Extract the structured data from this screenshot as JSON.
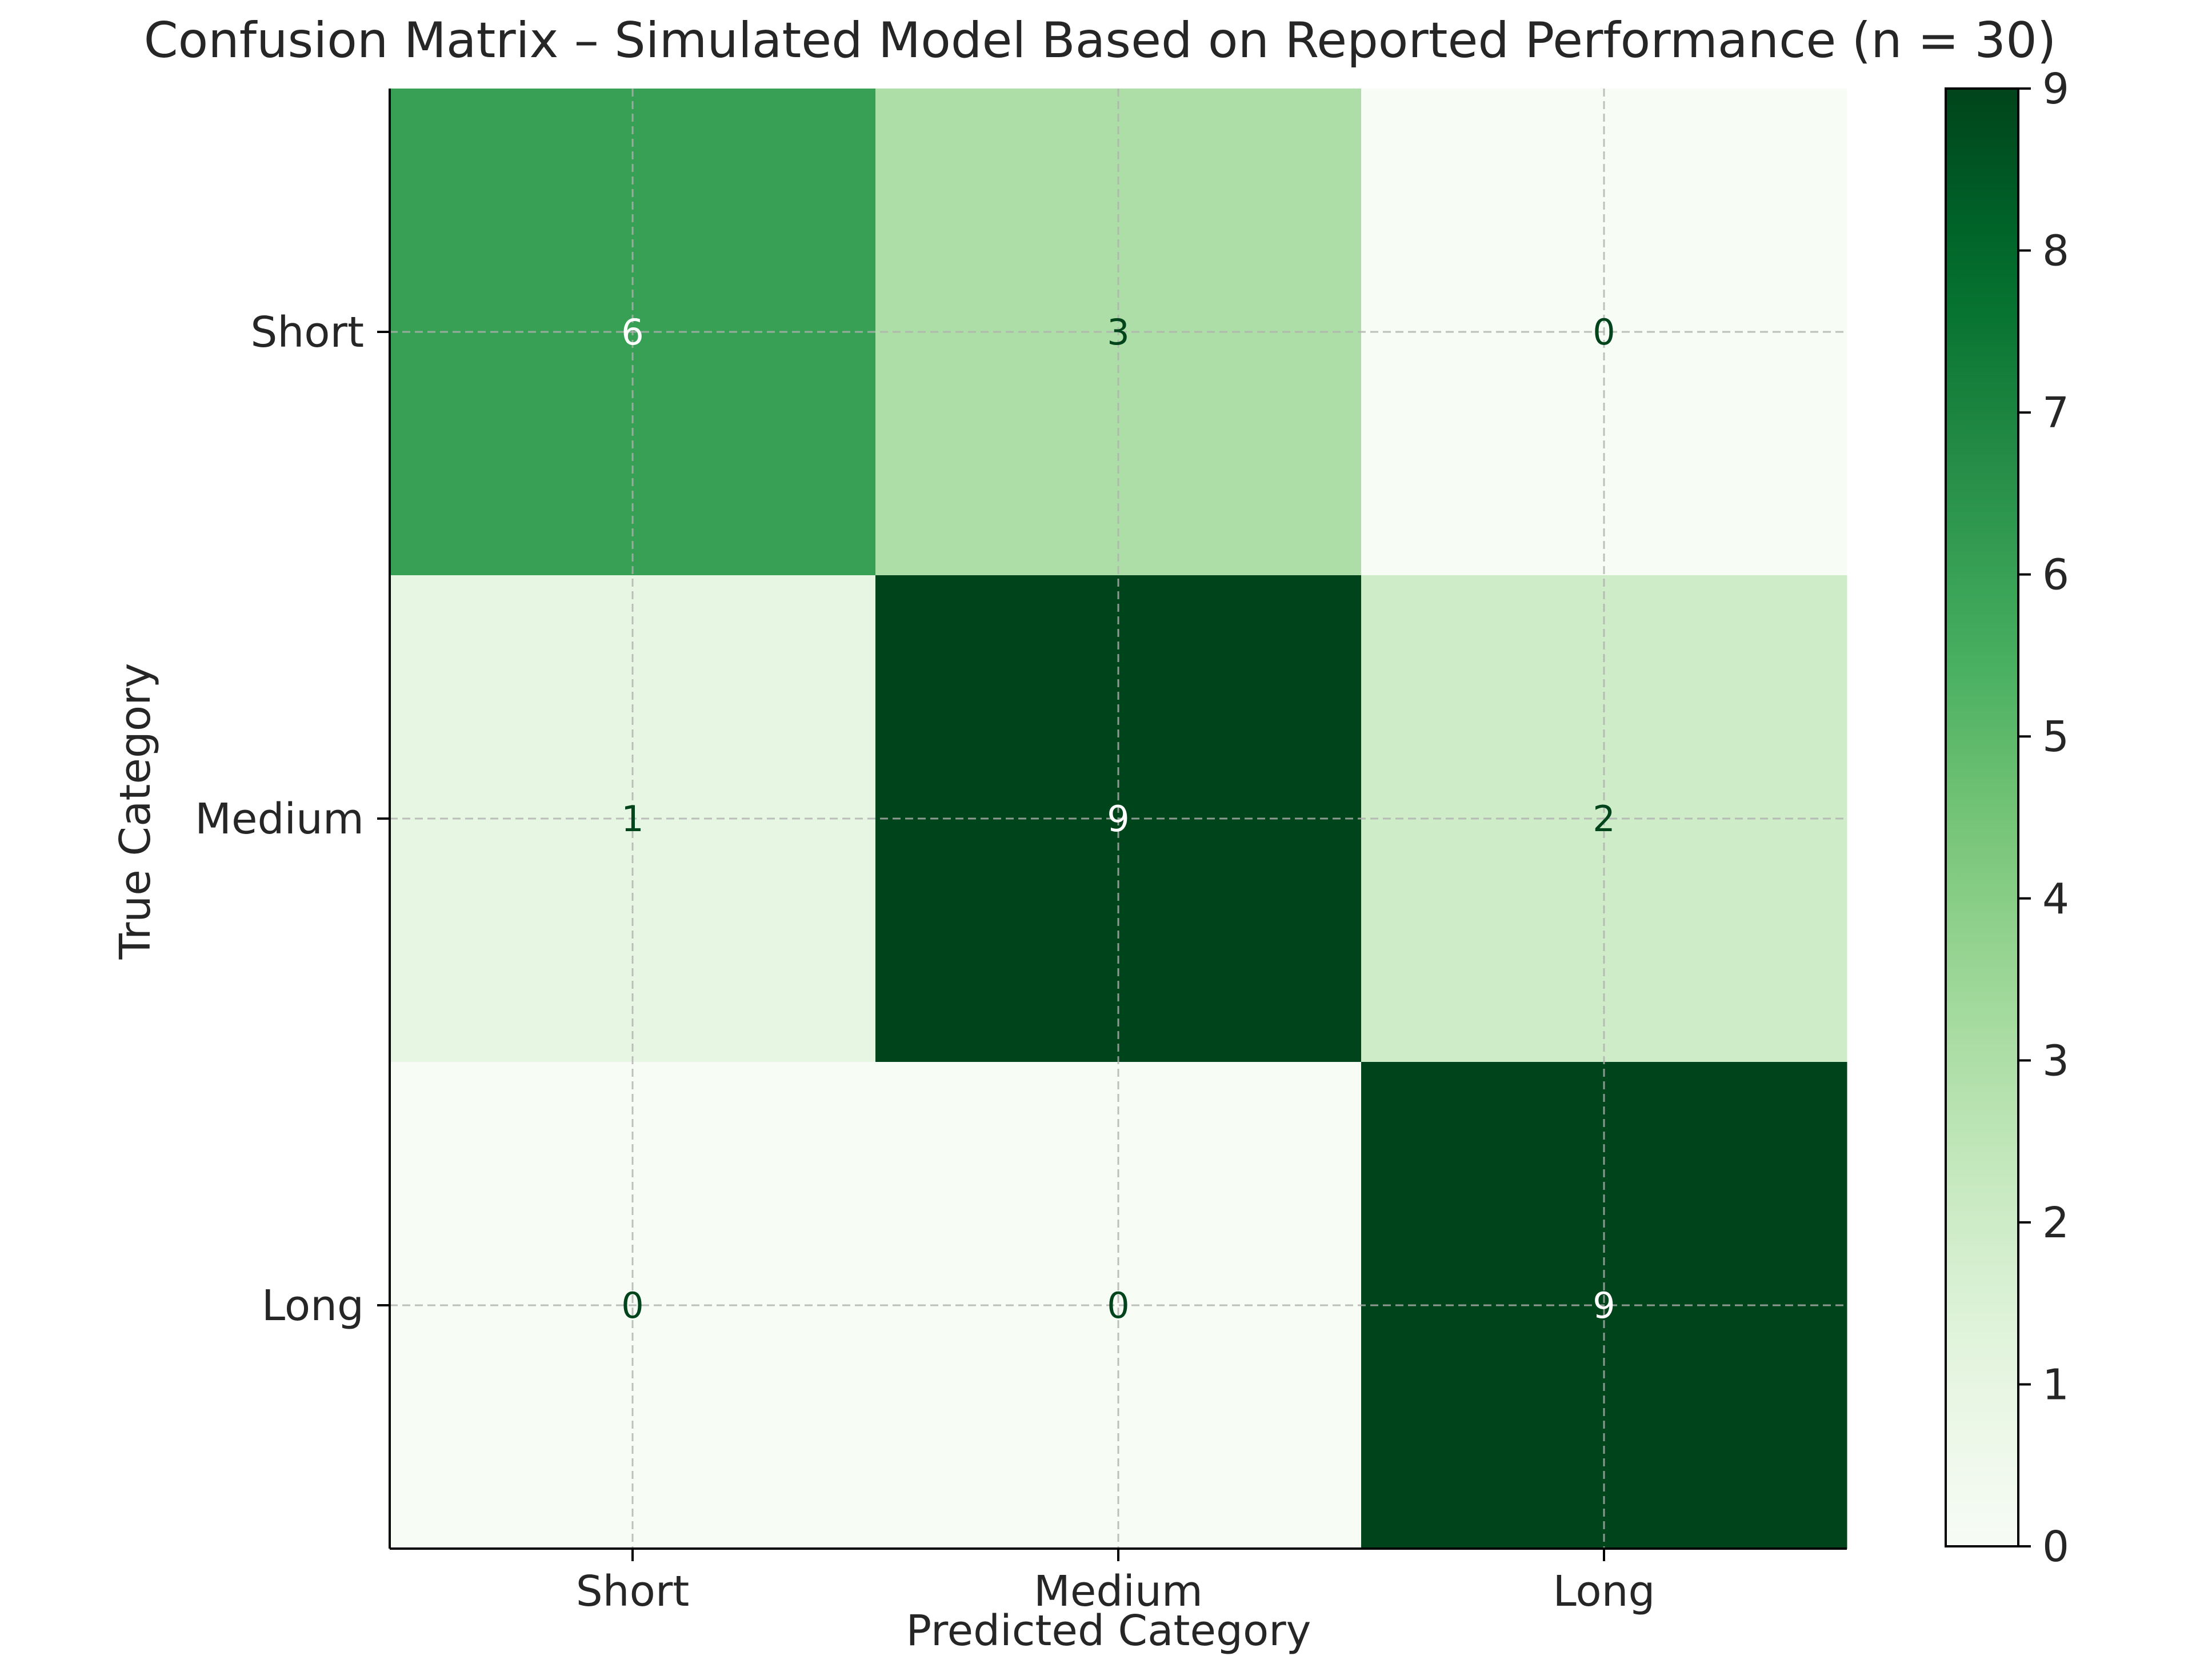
{
  "chart_data": {
    "type": "heatmap",
    "title": "Confusion Matrix – Simulated Model Based on Reported Performance (n = 30)",
    "xlabel": "Predicted Category",
    "ylabel": "True Category",
    "x_categories": [
      "Short",
      "Medium",
      "Long"
    ],
    "y_categories": [
      "Short",
      "Medium",
      "Long"
    ],
    "values": [
      [
        6,
        3,
        0
      ],
      [
        1,
        9,
        2
      ],
      [
        0,
        0,
        9
      ]
    ],
    "colorbar": {
      "range": [
        0,
        9
      ],
      "ticks": [
        "0",
        "1",
        "2",
        "3",
        "4",
        "5",
        "6",
        "7",
        "8",
        "9"
      ],
      "colormap": "Greens"
    },
    "grid": true
  }
}
